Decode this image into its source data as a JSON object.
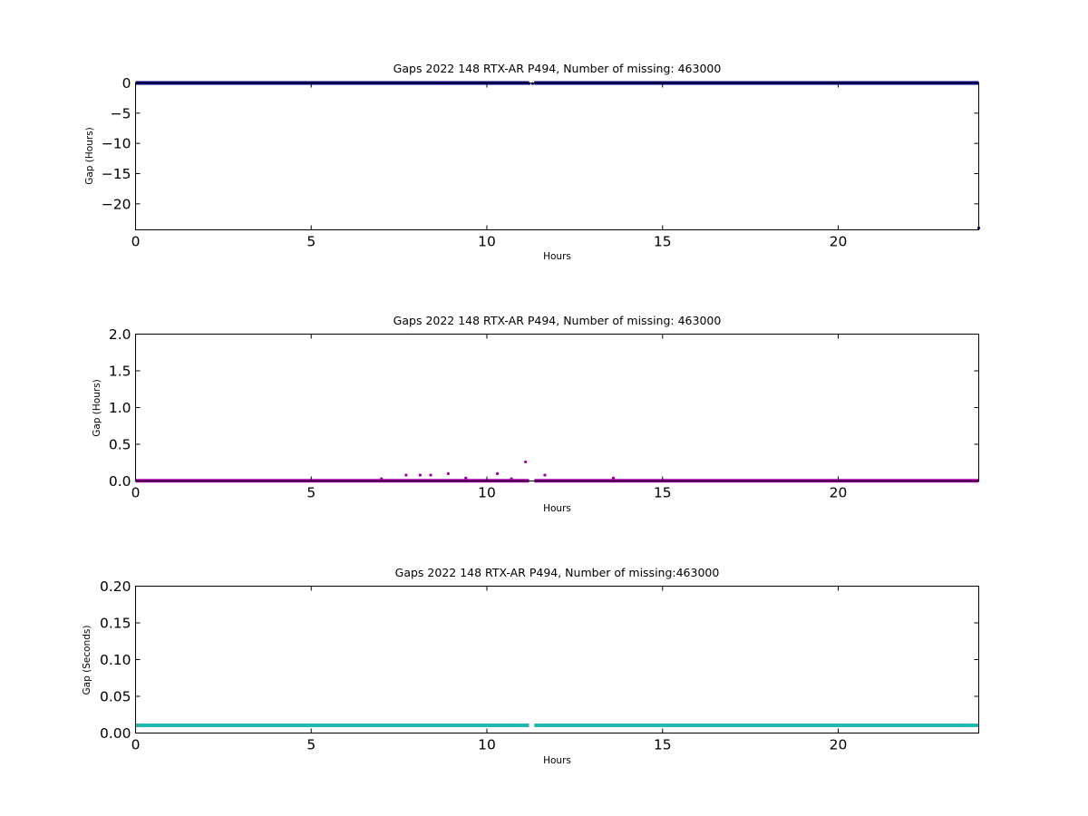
{
  "figure": {
    "background": "#ffffff"
  },
  "chart_data": [
    {
      "type": "scatter",
      "title": "Gaps 2022 148 RTX-AR  P494, Number of missing: 463000",
      "xlabel": "Hours",
      "ylabel": "Gap (Hours)",
      "xlim": [
        0,
        24
      ],
      "ylim": [
        -24.3,
        0
      ],
      "xticks": [
        0,
        5,
        10,
        15,
        20
      ],
      "yticks": [
        0,
        -5,
        -10,
        -15,
        -20
      ],
      "ytick_labels": [
        "0",
        "−5",
        "−10",
        "−15",
        "−20"
      ],
      "grid": false,
      "color": "#000080",
      "series": [
        {
          "baseline": {
            "y": 0.0,
            "x_ranges": [
              [
                0,
                11.2
              ],
              [
                11.35,
                24
              ]
            ]
          },
          "points": [
            {
              "x": 7.7,
              "y": -0.05
            },
            {
              "x": 8.1,
              "y": -0.05
            },
            {
              "x": 8.4,
              "y": -0.05
            },
            {
              "x": 8.9,
              "y": -0.08
            },
            {
              "x": 10.3,
              "y": -0.05
            },
            {
              "x": 11.2,
              "y": -0.1
            },
            {
              "x": 11.3,
              "y": -0.1
            },
            {
              "x": 11.65,
              "y": -0.05
            },
            {
              "x": 24,
              "y": -24.0
            }
          ]
        }
      ]
    },
    {
      "type": "scatter",
      "title": "Gaps 2022 148 RTX-AR  P494, Number of missing: 463000",
      "xlabel": "Hours",
      "ylabel": "Gap (Hours)",
      "xlim": [
        0,
        24
      ],
      "ylim": [
        0,
        2.0
      ],
      "xticks": [
        0,
        5,
        10,
        15,
        20
      ],
      "yticks": [
        0.0,
        0.5,
        1.0,
        1.5,
        2.0
      ],
      "ytick_labels": [
        "0.0",
        "0.5",
        "1.0",
        "1.5",
        "2.0"
      ],
      "grid": false,
      "color": "#a000a0",
      "series": [
        {
          "baseline": {
            "y": 0.003,
            "x_ranges": [
              [
                0,
                11.2
              ],
              [
                11.35,
                24
              ]
            ]
          },
          "points": [
            {
              "x": 7.0,
              "y": 0.03
            },
            {
              "x": 7.7,
              "y": 0.08
            },
            {
              "x": 8.1,
              "y": 0.08
            },
            {
              "x": 8.4,
              "y": 0.08
            },
            {
              "x": 8.9,
              "y": 0.1
            },
            {
              "x": 9.4,
              "y": 0.04
            },
            {
              "x": 10.3,
              "y": 0.1
            },
            {
              "x": 10.7,
              "y": 0.03
            },
            {
              "x": 11.1,
              "y": 0.26
            },
            {
              "x": 11.65,
              "y": 0.08
            },
            {
              "x": 13.6,
              "y": 0.04
            }
          ]
        }
      ]
    },
    {
      "type": "scatter",
      "title": "Gaps 2022 148 RTX-AR  P494, Number of missing:463000",
      "xlabel": "Hours",
      "ylabel": "Gap (Seconds)",
      "xlim": [
        0,
        24
      ],
      "ylim": [
        0,
        0.2
      ],
      "xticks": [
        0,
        5,
        10,
        15,
        20
      ],
      "yticks": [
        0.0,
        0.05,
        0.1,
        0.15,
        0.2
      ],
      "ytick_labels": [
        "0.00",
        "0.05",
        "0.10",
        "0.15",
        "0.20"
      ],
      "grid": false,
      "color": "#20b8b0",
      "series": [
        {
          "baseline": {
            "y": 0.0105,
            "x_ranges": [
              [
                0,
                11.2
              ],
              [
                11.35,
                24
              ]
            ]
          },
          "points": []
        }
      ]
    }
  ]
}
